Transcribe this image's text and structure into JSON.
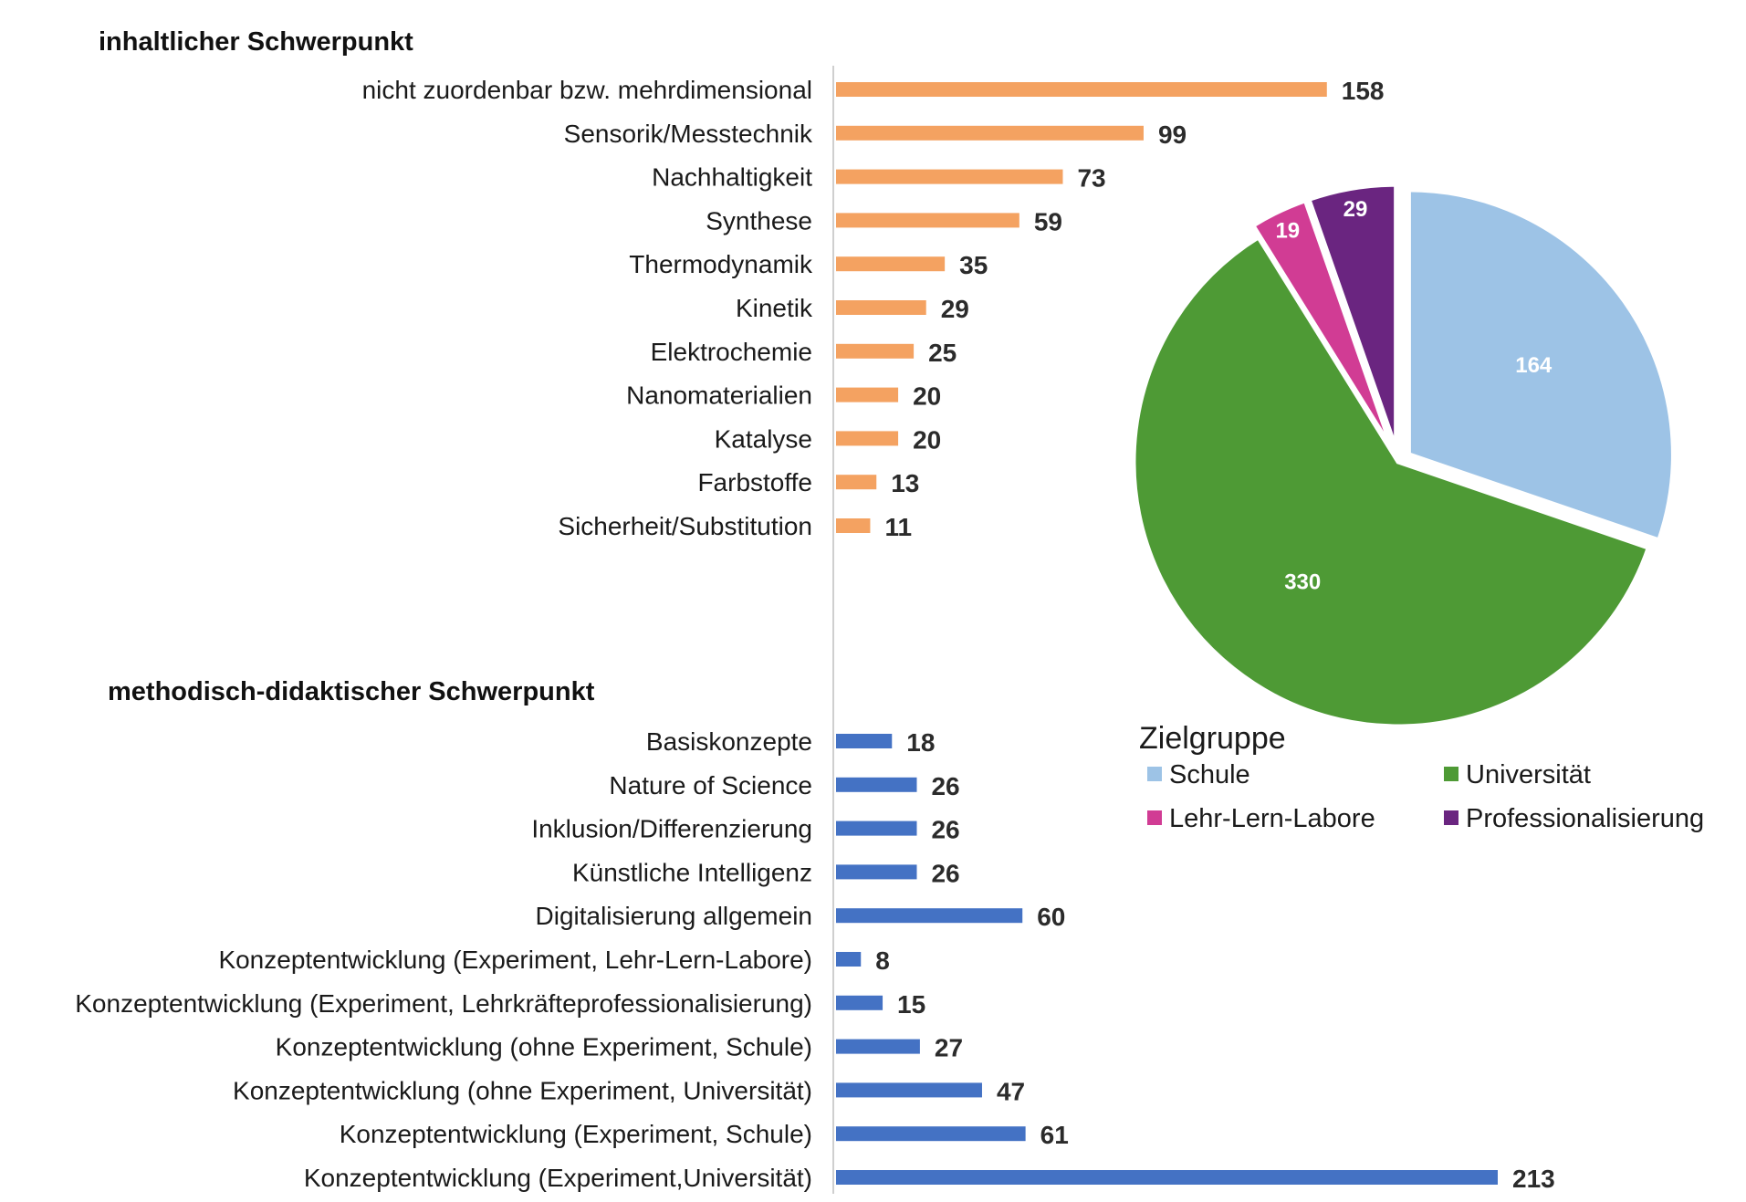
{
  "chart_data": [
    {
      "type": "bar",
      "orientation": "horizontal",
      "title": "inhaltlicher Schwerpunkt",
      "color": "#F4A261",
      "categories": [
        "nicht zuordenbar bzw. mehrdimensional",
        "Sensorik/Messtechnik",
        "Nachhaltigkeit",
        "Synthese",
        "Thermodynamik",
        "Kinetik",
        "Elektrochemie",
        "Nanomaterialien",
        "Katalyse",
        "Farbstoffe",
        "Sicherheit/Substitution"
      ],
      "values": [
        158,
        99,
        73,
        59,
        35,
        29,
        25,
        20,
        20,
        13,
        11
      ],
      "value_labels": [
        "158",
        "99",
        "73",
        "59",
        "35",
        "29",
        "25",
        "20",
        "20",
        "13",
        "11"
      ],
      "data_labels": true,
      "grid": false,
      "xlim": [
        0,
        213
      ]
    },
    {
      "type": "bar",
      "orientation": "horizontal",
      "title": "methodisch-didaktischer Schwerpunkt",
      "color": "#4472C4",
      "categories": [
        "Basiskonzepte",
        "Nature of Science",
        "Inklusion/Differenzierung",
        "Künstliche Intelligenz",
        "Digitalisierung allgemein",
        "Konzeptentwicklung (Experiment, Lehr-Lern-Labore)",
        "Konzeptentwicklung (Experiment, Lehrkräfteprofessionalisierung)",
        "Konzeptentwicklung (ohne Experiment, Schule)",
        "Konzeptentwicklung (ohne Experiment, Universität)",
        "Konzeptentwicklung (Experiment, Schule)",
        "Konzeptentwicklung (Experiment,Universität)"
      ],
      "values": [
        18,
        26,
        26,
        26,
        60,
        8,
        15,
        27,
        47,
        61,
        213
      ],
      "value_labels": [
        "18",
        "26",
        "26",
        "26",
        "60",
        "8",
        "15",
        "27",
        "47",
        "61",
        "213"
      ],
      "data_labels": true,
      "grid": false,
      "xlim": [
        0,
        213
      ]
    },
    {
      "type": "pie",
      "legend_title": "Zielgruppe",
      "legend_placement": "bottom",
      "slices": [
        {
          "label": "Schule",
          "value": 164,
          "value_label": "164",
          "color": "#9DC3E6"
        },
        {
          "label": "Universität",
          "value": 330,
          "value_label": "330",
          "color": "#4E9A35"
        },
        {
          "label": "Lehr-Lern-Labore",
          "value": 19,
          "value_label": "19",
          "color": "#D13C94"
        },
        {
          "label": "Professionalisierung",
          "value": 29,
          "value_label": "29",
          "color": "#6A2580"
        }
      ]
    }
  ]
}
